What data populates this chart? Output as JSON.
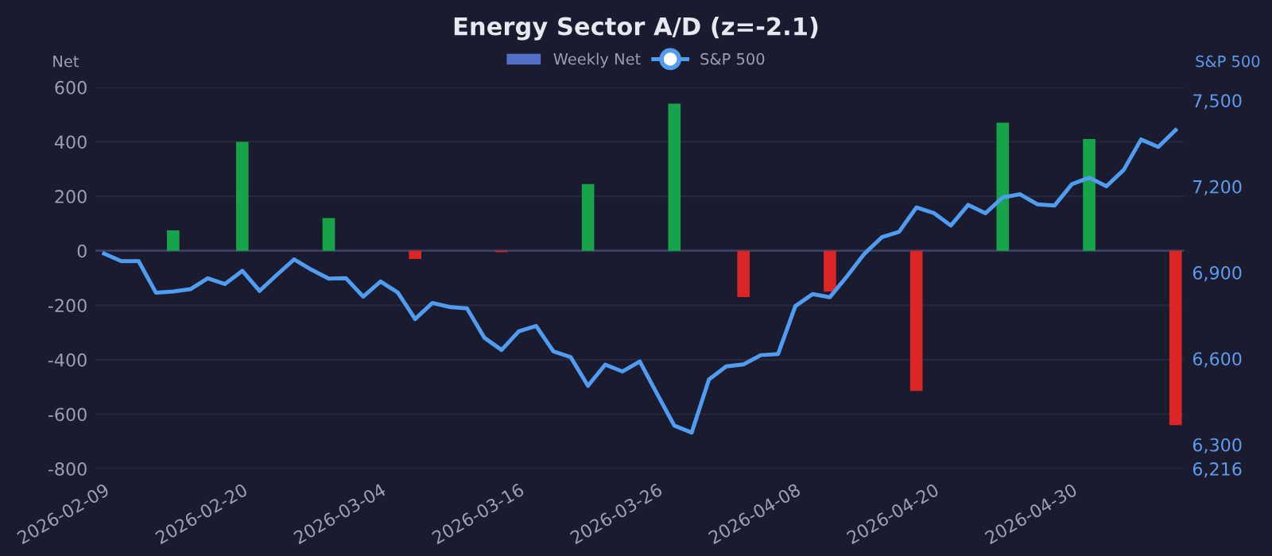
{
  "chart_data": {
    "type": "bar",
    "title": "Energy Sector A/D (z=-2.1)",
    "ylabel": "Net",
    "y2label": "S&P 500",
    "categories": [
      "2026-02-09",
      null,
      null,
      null,
      null,
      null,
      null,
      null,
      "2026-02-20",
      null,
      null,
      null,
      null,
      null,
      null,
      null,
      "2026-03-04",
      null,
      null,
      null,
      null,
      null,
      null,
      null,
      "2026-03-16",
      null,
      null,
      null,
      null,
      null,
      null,
      null,
      "2026-03-26",
      null,
      null,
      null,
      null,
      null,
      null,
      null,
      "2026-04-08",
      null,
      null,
      null,
      null,
      null,
      null,
      null,
      "2026-04-20",
      null,
      null,
      null,
      null,
      null,
      null,
      null,
      "2026-04-30",
      null,
      null,
      null,
      null,
      null,
      null
    ],
    "series": [
      {
        "name": "Weekly Net",
        "color": "#5470c6",
        "values": [
          null,
          null,
          null,
          null,
          75,
          null,
          null,
          null,
          400,
          null,
          null,
          null,
          null,
          120,
          null,
          null,
          null,
          null,
          -30,
          null,
          null,
          null,
          null,
          -5,
          null,
          null,
          null,
          null,
          245,
          null,
          null,
          null,
          null,
          540,
          null,
          null,
          null,
          -170,
          null,
          null,
          null,
          null,
          -150,
          null,
          null,
          null,
          null,
          -515,
          null,
          null,
          null,
          null,
          470,
          null,
          null,
          null,
          null,
          410,
          null,
          null,
          null,
          null,
          -640
        ],
        "colors": [
          null,
          null,
          null,
          null,
          "#16a34a",
          null,
          null,
          null,
          "#16a34a",
          null,
          null,
          null,
          null,
          "#16a34a",
          null,
          null,
          null,
          null,
          "#dc2626",
          null,
          null,
          null,
          null,
          "#dc2626",
          null,
          null,
          null,
          null,
          "#16a34a",
          null,
          null,
          null,
          null,
          "#16a34a",
          null,
          null,
          null,
          "#dc2626",
          null,
          null,
          null,
          null,
          "#dc2626",
          null,
          null,
          null,
          null,
          "#dc2626",
          null,
          null,
          null,
          null,
          "#16a34a",
          null,
          null,
          null,
          null,
          "#16a34a",
          null,
          null,
          null,
          null,
          "#dc2626"
        ]
      },
      {
        "name": "S&P 500",
        "type": "line",
        "axis": "y2",
        "color": "#4f9cf0",
        "values": [
          6966,
          6940,
          6940,
          6830,
          6834,
          6842,
          6880,
          6860,
          6906,
          6836,
          6892,
          6946,
          6910,
          6879,
          6880,
          6816,
          6869,
          6830,
          6738,
          6794,
          6780,
          6775,
          6673,
          6630,
          6695,
          6714,
          6625,
          6605,
          6505,
          6579,
          6555,
          6590,
          6477,
          6366,
          6342,
          6527,
          6573,
          6580,
          6612,
          6616,
          6783,
          6825,
          6814,
          6888,
          6966,
          7023,
          7042,
          7127,
          7108,
          7064,
          7136,
          7107,
          7162,
          7173,
          7138,
          7134,
          7208,
          7231,
          7201,
          7258,
          7364,
          7338,
          7397
        ]
      }
    ],
    "ylim": [
      -800,
      600
    ],
    "yticks": [
      -800,
      -600,
      -400,
      -200,
      0,
      200,
      400,
      600
    ],
    "y2lim": [
      6216,
      7546
    ],
    "y2ticks": [
      {
        "value": 6216,
        "label": "6,216"
      },
      {
        "value": 6300,
        "label": "6,300"
      },
      {
        "value": 6600,
        "label": "6,600"
      },
      {
        "value": 6900,
        "label": "6,900"
      },
      {
        "value": 7200,
        "label": "7,200"
      },
      {
        "value": 7500,
        "label": "7,500"
      }
    ],
    "ref_lines": [
      {
        "axis": "y",
        "value": 0,
        "color": "#3b3f66"
      }
    ],
    "grid": "y",
    "legend": "top"
  }
}
